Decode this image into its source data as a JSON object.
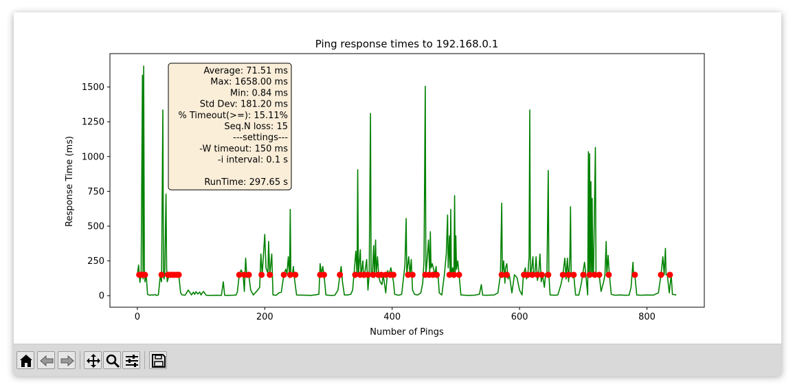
{
  "chart_data": {
    "type": "line",
    "title": "Ping response times to 192.168.0.1",
    "xlabel": "Number of Pings",
    "ylabel": "Response Time (ms)",
    "xlim": [
      -43,
      890
    ],
    "ylim": [
      -83,
      1740
    ],
    "xticks": [
      "0",
      "200",
      "400",
      "600",
      "800"
    ],
    "xtick_values": [
      0,
      200,
      400,
      600,
      800
    ],
    "yticks": [
      "0",
      "250",
      "500",
      "750",
      "1000",
      "1250",
      "1500"
    ],
    "ytick_values": [
      0,
      250,
      500,
      750,
      1000,
      1250,
      1500
    ],
    "grid": false,
    "line_color": "#008000",
    "marker_color": "#ff0000",
    "series": [
      {
        "values": [
          [
            0,
            150
          ],
          [
            2,
            220
          ],
          [
            4,
            95
          ],
          [
            6,
            160
          ],
          [
            8,
            1585
          ],
          [
            9,
            120
          ],
          [
            10,
            1650
          ],
          [
            11,
            200
          ],
          [
            12,
            100
          ],
          [
            14,
            150
          ],
          [
            16,
            10
          ],
          [
            18,
            5
          ],
          [
            20,
            3
          ],
          [
            22,
            6
          ],
          [
            25,
            4
          ],
          [
            28,
            8
          ],
          [
            30,
            2
          ],
          [
            33,
            5
          ],
          [
            36,
            140
          ],
          [
            38,
            100
          ],
          [
            40,
            1335
          ],
          [
            41,
            150
          ],
          [
            42,
            120
          ],
          [
            43,
            160
          ],
          [
            45,
            730
          ],
          [
            46,
            200
          ],
          [
            47,
            100
          ],
          [
            50,
            150
          ],
          [
            55,
            150
          ],
          [
            60,
            150
          ],
          [
            65,
            150
          ],
          [
            68,
            20
          ],
          [
            70,
            6
          ],
          [
            75,
            3
          ],
          [
            80,
            40
          ],
          [
            85,
            5
          ],
          [
            88,
            25
          ],
          [
            90,
            10
          ],
          [
            92,
            28
          ],
          [
            95,
            12
          ],
          [
            98,
            26
          ],
          [
            100,
            5
          ],
          [
            102,
            20
          ],
          [
            104,
            30
          ],
          [
            108,
            3
          ],
          [
            115,
            2
          ],
          [
            125,
            3
          ],
          [
            132,
            2
          ],
          [
            135,
            100
          ],
          [
            137,
            4
          ],
          [
            140,
            2
          ],
          [
            150,
            3
          ],
          [
            155,
            5
          ],
          [
            157,
            25
          ],
          [
            160,
            150
          ],
          [
            163,
            185
          ],
          [
            166,
            150
          ],
          [
            168,
            30
          ],
          [
            170,
            270
          ],
          [
            172,
            130
          ],
          [
            175,
            145
          ],
          [
            178,
            40
          ],
          [
            182,
            5
          ],
          [
            188,
            35
          ],
          [
            192,
            60
          ],
          [
            194,
            300
          ],
          [
            196,
            150
          ],
          [
            200,
            440
          ],
          [
            202,
            200
          ],
          [
            205,
            160
          ],
          [
            206,
            390
          ],
          [
            208,
            150
          ],
          [
            211,
            300
          ],
          [
            213,
            5
          ],
          [
            218,
            3
          ],
          [
            222,
            20
          ],
          [
            226,
            25
          ],
          [
            230,
            150
          ],
          [
            233,
            190
          ],
          [
            235,
            160
          ],
          [
            237,
            280
          ],
          [
            239,
            130
          ],
          [
            240,
            620
          ],
          [
            241,
            150
          ],
          [
            243,
            140
          ],
          [
            245,
            210
          ],
          [
            246,
            150
          ],
          [
            250,
            5
          ],
          [
            258,
            4
          ],
          [
            265,
            3
          ],
          [
            272,
            2
          ],
          [
            278,
            5
          ],
          [
            285,
            10
          ],
          [
            287,
            230
          ],
          [
            289,
            150
          ],
          [
            291,
            210
          ],
          [
            293,
            150
          ],
          [
            296,
            5
          ],
          [
            300,
            3
          ],
          [
            305,
            2
          ],
          [
            310,
            3
          ],
          [
            315,
            40
          ],
          [
            318,
            150
          ],
          [
            320,
            210
          ],
          [
            322,
            100
          ],
          [
            325,
            5
          ],
          [
            330,
            5
          ],
          [
            335,
            10
          ],
          [
            338,
            40
          ],
          [
            340,
            150
          ],
          [
            343,
            320
          ],
          [
            345,
            140
          ],
          [
            346,
            905
          ],
          [
            347,
            150
          ],
          [
            350,
            330
          ],
          [
            351,
            140
          ],
          [
            354,
            250
          ],
          [
            355,
            130
          ],
          [
            357,
            160
          ],
          [
            360,
            260
          ],
          [
            362,
            40
          ],
          [
            364,
            150
          ],
          [
            366,
            1310
          ],
          [
            367,
            150
          ],
          [
            369,
            160
          ],
          [
            371,
            360
          ],
          [
            372,
            130
          ],
          [
            374,
            400
          ],
          [
            375,
            150
          ],
          [
            377,
            280
          ],
          [
            379,
            140
          ],
          [
            381,
            100
          ],
          [
            384,
            80
          ],
          [
            386,
            150
          ],
          [
            390,
            20
          ],
          [
            393,
            180
          ],
          [
            395,
            150
          ],
          [
            398,
            200
          ],
          [
            400,
            150
          ],
          [
            402,
            100
          ],
          [
            404,
            10
          ],
          [
            410,
            3
          ],
          [
            415,
            10
          ],
          [
            420,
            220
          ],
          [
            422,
            555
          ],
          [
            423,
            150
          ],
          [
            426,
            280
          ],
          [
            428,
            150
          ],
          [
            430,
            260
          ],
          [
            432,
            40
          ],
          [
            435,
            10
          ],
          [
            440,
            5
          ],
          [
            445,
            20
          ],
          [
            448,
            90
          ],
          [
            450,
            250
          ],
          [
            452,
            1505
          ],
          [
            453,
            150
          ],
          [
            455,
            260
          ],
          [
            457,
            400
          ],
          [
            459,
            150
          ],
          [
            460,
            460
          ],
          [
            461,
            200
          ],
          [
            463,
            230
          ],
          [
            465,
            190
          ],
          [
            467,
            150
          ],
          [
            469,
            210
          ],
          [
            470,
            130
          ],
          [
            472,
            150
          ],
          [
            474,
            20
          ],
          [
            478,
            5
          ],
          [
            482,
            150
          ],
          [
            485,
            300
          ],
          [
            487,
            580
          ],
          [
            488,
            200
          ],
          [
            490,
            430
          ],
          [
            491,
            150
          ],
          [
            492,
            620
          ],
          [
            493,
            150
          ],
          [
            495,
            200
          ],
          [
            497,
            130
          ],
          [
            498,
            720
          ],
          [
            499,
            150
          ],
          [
            500,
            430
          ],
          [
            501,
            190
          ],
          [
            503,
            250
          ],
          [
            505,
            150
          ],
          [
            508,
            5
          ],
          [
            515,
            3
          ],
          [
            520,
            2
          ],
          [
            530,
            4
          ],
          [
            537,
            10
          ],
          [
            540,
            80
          ],
          [
            542,
            4
          ],
          [
            550,
            3
          ],
          [
            560,
            5
          ],
          [
            566,
            20
          ],
          [
            570,
            150
          ],
          [
            572,
            665
          ],
          [
            573,
            150
          ],
          [
            575,
            250
          ],
          [
            577,
            90
          ],
          [
            578,
            200
          ],
          [
            580,
            230
          ],
          [
            582,
            120
          ],
          [
            584,
            150
          ],
          [
            588,
            20
          ],
          [
            592,
            150
          ],
          [
            596,
            130
          ],
          [
            600,
            40
          ],
          [
            604,
            5
          ],
          [
            606,
            150
          ],
          [
            609,
            200
          ],
          [
            611,
            120
          ],
          [
            613,
            150
          ],
          [
            615,
            280
          ],
          [
            616,
            1335
          ],
          [
            617,
            150
          ],
          [
            619,
            200
          ],
          [
            621,
            280
          ],
          [
            622,
            150
          ],
          [
            624,
            160
          ],
          [
            626,
            280
          ],
          [
            628,
            110
          ],
          [
            630,
            150
          ],
          [
            632,
            300
          ],
          [
            634,
            100
          ],
          [
            636,
            150
          ],
          [
            639,
            60
          ],
          [
            641,
            160
          ],
          [
            643,
            150
          ],
          [
            645,
            900
          ],
          [
            646,
            150
          ],
          [
            648,
            5
          ],
          [
            655,
            3
          ],
          [
            660,
            5
          ],
          [
            665,
            80
          ],
          [
            668,
            150
          ],
          [
            671,
            270
          ],
          [
            673,
            120
          ],
          [
            675,
            270
          ],
          [
            677,
            100
          ],
          [
            679,
            290
          ],
          [
            680,
            640
          ],
          [
            681,
            150
          ],
          [
            683,
            130
          ],
          [
            685,
            150
          ],
          [
            688,
            5
          ],
          [
            693,
            4
          ],
          [
            697,
            90
          ],
          [
            699,
            150
          ],
          [
            702,
            240
          ],
          [
            704,
            150
          ],
          [
            707,
            5
          ],
          [
            708,
            1035
          ],
          [
            709,
            150
          ],
          [
            710,
            1020
          ],
          [
            711,
            150
          ],
          [
            712,
            820
          ],
          [
            713,
            150
          ],
          [
            714,
            700
          ],
          [
            715,
            150
          ],
          [
            716,
            160
          ],
          [
            719,
            1065
          ],
          [
            720,
            150
          ],
          [
            722,
            160
          ],
          [
            725,
            150
          ],
          [
            728,
            30
          ],
          [
            732,
            100
          ],
          [
            734,
            150
          ],
          [
            736,
            390
          ],
          [
            737,
            150
          ],
          [
            739,
            290
          ],
          [
            741,
            150
          ],
          [
            744,
            10
          ],
          [
            750,
            3
          ],
          [
            758,
            5
          ],
          [
            765,
            3
          ],
          [
            772,
            4
          ],
          [
            775,
            60
          ],
          [
            778,
            240
          ],
          [
            779,
            150
          ],
          [
            781,
            150
          ],
          [
            784,
            5
          ],
          [
            790,
            3
          ],
          [
            800,
            5
          ],
          [
            810,
            4
          ],
          [
            818,
            20
          ],
          [
            822,
            150
          ],
          [
            825,
            280
          ],
          [
            827,
            150
          ],
          [
            829,
            340
          ],
          [
            830,
            150
          ],
          [
            832,
            150
          ],
          [
            835,
            20
          ],
          [
            838,
            150
          ],
          [
            840,
            10
          ],
          [
            846,
            5
          ]
        ],
        "timeouts_x": [
          3,
          6,
          9,
          12,
          38,
          48,
          52,
          55,
          58,
          62,
          65,
          160,
          168,
          175,
          195,
          208,
          230,
          240,
          248,
          287,
          293,
          318,
          342,
          350,
          356,
          362,
          370,
          378,
          383,
          390,
          397,
          402,
          425,
          432,
          452,
          458,
          464,
          470,
          490,
          497,
          505,
          572,
          580,
          607,
          613,
          620,
          628,
          635,
          645,
          668,
          677,
          685,
          700,
          710,
          718,
          725,
          740,
          781,
          822,
          836
        ]
      }
    ],
    "annotation_lines": [
      "Average: 71.51 ms",
      "Max: 1658.00 ms",
      "Min: 0.84 ms",
      "Std Dev: 181.20 ms",
      "% Timeout(>=): 15.11%",
      "Seq.N loss: 15",
      "---settings---",
      "-W timeout: 150 ms",
      "-i interval: 0.1 s",
      "",
      "RunTime: 297.65 s"
    ],
    "annotation_placement": "top-left"
  },
  "toolbar": {
    "buttons": [
      {
        "icon": "home-icon"
      },
      {
        "icon": "back-arrow-icon"
      },
      {
        "icon": "forward-arrow-icon"
      },
      {
        "icon": "pan-icon"
      },
      {
        "icon": "zoom-icon"
      },
      {
        "icon": "configure-subplots-icon"
      },
      {
        "icon": "save-icon"
      }
    ]
  }
}
